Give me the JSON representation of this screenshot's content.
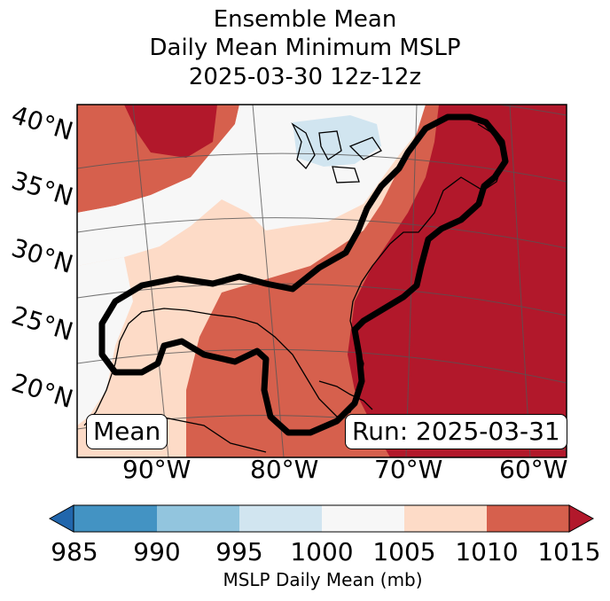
{
  "title": {
    "line1": "Ensemble Mean",
    "line2": "Daily Mean Minimum MSLP",
    "line3": "2025-03-30 12z-12z"
  },
  "axes": {
    "lat_labels": [
      "40°N",
      "35°N",
      "30°N",
      "25°N",
      "20°N"
    ],
    "lon_labels": [
      "90°W",
      "80°W",
      "70°W",
      "60°W"
    ]
  },
  "annotations": {
    "mean_label": "Mean",
    "run_label": "Run: 2025-03-31"
  },
  "colorbar": {
    "label": "MSLP Daily Mean (mb)",
    "ticks": [
      "985",
      "990",
      "995",
      "1000",
      "1005",
      "1010",
      "1015"
    ],
    "colors": [
      "#2166ac",
      "#4393c3",
      "#92c5de",
      "#d1e5f0",
      "#f7f7f7",
      "#fddbc7",
      "#d6604d",
      "#b2182b"
    ],
    "extend": "both"
  }
}
